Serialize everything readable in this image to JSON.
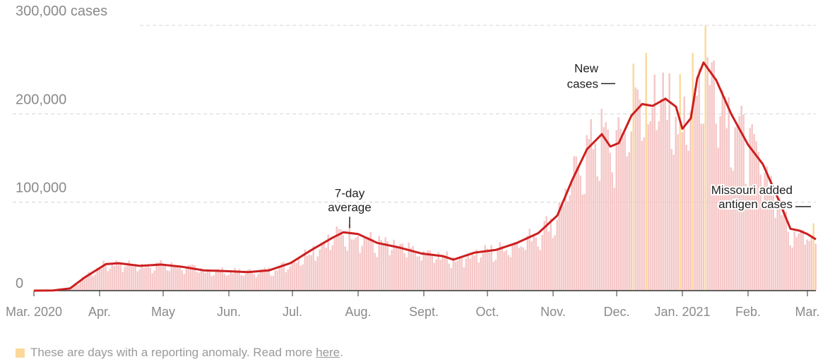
{
  "chart_data": {
    "type": "bar",
    "title": "",
    "y_unit_label": "300,000 cases",
    "ylim": [
      0,
      300000
    ],
    "y_ticks": [
      {
        "value": 0,
        "label": "0"
      },
      {
        "value": 100000,
        "label": "100,000"
      },
      {
        "value": 200000,
        "label": "200,000"
      }
    ],
    "grid": true,
    "x_range": [
      "2020-03-01",
      "2021-03-05"
    ],
    "x_ticks": [
      {
        "date": "2020-03-01",
        "label": "Mar. 2020"
      },
      {
        "date": "2020-04-01",
        "label": "Apr."
      },
      {
        "date": "2020-05-01",
        "label": "May"
      },
      {
        "date": "2020-06-01",
        "label": "Jun."
      },
      {
        "date": "2020-07-01",
        "label": "Jul."
      },
      {
        "date": "2020-08-01",
        "label": "Aug."
      },
      {
        "date": "2020-09-01",
        "label": "Sept."
      },
      {
        "date": "2020-10-01",
        "label": "Oct."
      },
      {
        "date": "2020-11-01",
        "label": "Nov."
      },
      {
        "date": "2020-12-01",
        "label": "Dec."
      },
      {
        "date": "2021-01-01",
        "label": "Jan. 2021"
      },
      {
        "date": "2021-02-01",
        "label": "Feb."
      },
      {
        "date": "2021-03-01",
        "label": "Mar."
      }
    ],
    "series": [
      {
        "name": "7-day average",
        "color": "#cc1f1f",
        "points": [
          [
            "2020-03-01",
            0
          ],
          [
            "2020-03-10",
            200
          ],
          [
            "2020-03-18",
            2500
          ],
          [
            "2020-03-25",
            15000
          ],
          [
            "2020-04-04",
            30000
          ],
          [
            "2020-04-10",
            31000
          ],
          [
            "2020-04-20",
            28000
          ],
          [
            "2020-04-30",
            29500
          ],
          [
            "2020-05-10",
            27000
          ],
          [
            "2020-05-20",
            23000
          ],
          [
            "2020-05-31",
            22000
          ],
          [
            "2020-06-10",
            21000
          ],
          [
            "2020-06-20",
            23000
          ],
          [
            "2020-06-30",
            31000
          ],
          [
            "2020-07-10",
            46000
          ],
          [
            "2020-07-20",
            60000
          ],
          [
            "2020-07-25",
            66000
          ],
          [
            "2020-08-01",
            64000
          ],
          [
            "2020-08-10",
            54000
          ],
          [
            "2020-08-20",
            49000
          ],
          [
            "2020-08-31",
            42000
          ],
          [
            "2020-09-10",
            39000
          ],
          [
            "2020-09-15",
            35000
          ],
          [
            "2020-09-25",
            43000
          ],
          [
            "2020-10-05",
            46000
          ],
          [
            "2020-10-15",
            54000
          ],
          [
            "2020-10-25",
            65000
          ],
          [
            "2020-11-03",
            85000
          ],
          [
            "2020-11-10",
            125000
          ],
          [
            "2020-11-17",
            160000
          ],
          [
            "2020-11-24",
            177000
          ],
          [
            "2020-11-28",
            163000
          ],
          [
            "2020-12-02",
            167000
          ],
          [
            "2020-12-08",
            198000
          ],
          [
            "2020-12-13",
            211000
          ],
          [
            "2020-12-18",
            209000
          ],
          [
            "2020-12-24",
            217000
          ],
          [
            "2020-12-29",
            208000
          ],
          [
            "2021-01-01",
            183000
          ],
          [
            "2021-01-05",
            195000
          ],
          [
            "2021-01-08",
            240000
          ],
          [
            "2021-01-11",
            258000
          ],
          [
            "2021-01-17",
            238000
          ],
          [
            "2021-01-24",
            200000
          ],
          [
            "2021-02-01",
            165000
          ],
          [
            "2021-02-08",
            143000
          ],
          [
            "2021-02-15",
            105000
          ],
          [
            "2021-02-21",
            70000
          ],
          [
            "2021-02-25",
            68000
          ],
          [
            "2021-03-01",
            64000
          ],
          [
            "2021-03-05",
            58000
          ]
        ]
      }
    ],
    "anomaly_dates": [
      "2020-12-09",
      "2020-12-15",
      "2020-12-31",
      "2021-01-06",
      "2021-01-12",
      "2021-03-04"
    ],
    "colors": {
      "bar": "#f6c6c6",
      "anomaly": "#fcd89a",
      "line": "#cc1f1f"
    },
    "annotations": [
      {
        "lines": [
          "7-day",
          "average"
        ],
        "date": "2020-07-28",
        "value": 66000
      },
      {
        "lines": [
          "New",
          "cases"
        ],
        "date": "2020-11-29",
        "value": 231000
      },
      {
        "lines": [
          "Missouri added",
          "antigen cases"
        ],
        "date": "2021-03-04",
        "value": 95000
      }
    ]
  },
  "footer": {
    "note": "These are days with a reporting anomaly. Read more ",
    "link_text": "here",
    "period": "."
  }
}
